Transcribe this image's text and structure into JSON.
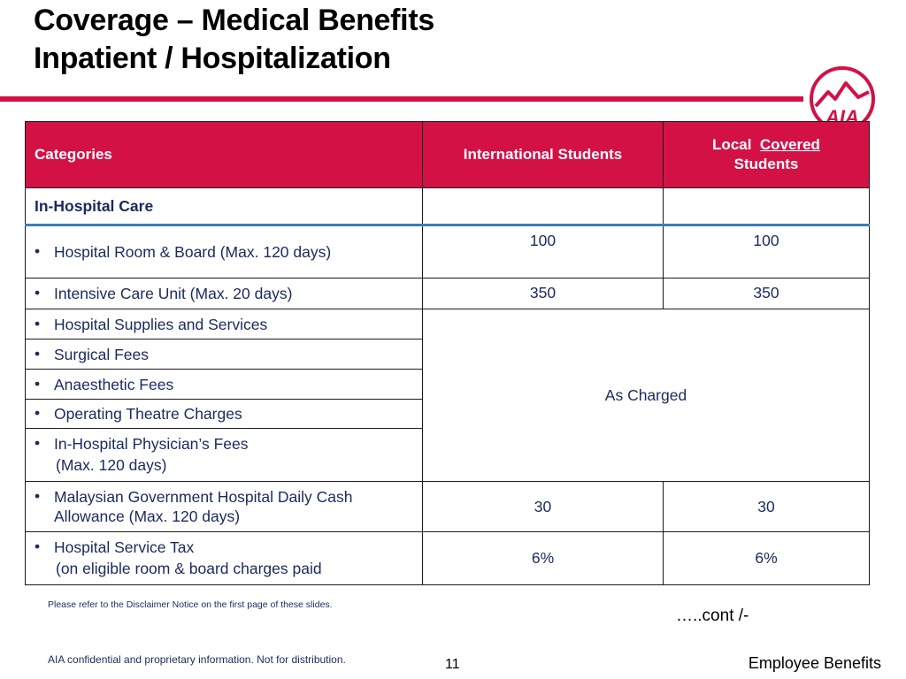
{
  "title": {
    "line1": "Coverage – Medical Benefits",
    "line2": "Inpatient / Hospitalization"
  },
  "brand": {
    "accent": "#d31145",
    "logo_icon": "aia-logo-icon",
    "logo_text": "AIA"
  },
  "table": {
    "headers": {
      "categories": "Categories",
      "international": "International Students",
      "local_prefix": "Local",
      "local_underlined": "Covered",
      "local_suffix": "Students"
    },
    "section": "In-Hospital Care",
    "bullet": "•",
    "rows": [
      {
        "label": "Hospital Room & Board (Max. 120 days)",
        "international": "100",
        "local": "100"
      },
      {
        "label": "Intensive Care Unit  (Max. 20 days)",
        "international": "350",
        "local": "350"
      },
      {
        "label": "Hospital Supplies and Services"
      },
      {
        "label": "Surgical Fees"
      },
      {
        "label": "Anaesthetic Fees"
      },
      {
        "label": "Operating Theatre Charges"
      },
      {
        "label": "In-Hospital Physician’s Fees",
        "sub": "(Max. 120 days)"
      },
      {
        "label": "Malaysian Government Hospital Daily Cash Allowance (Max. 120 days)",
        "international": "30",
        "local": "30"
      },
      {
        "label": "Hospital Service Tax",
        "sub": "(on eligible room & board charges paid",
        "international": "6%",
        "local": "6%"
      }
    ],
    "merged_value": "As Charged"
  },
  "note": "Please refer to the Disclaimer Notice on the first page of these slides.",
  "cont": "…..cont /-",
  "footer": {
    "confidential": "AIA confidential and proprietary information. Not for distribution.",
    "page": "11",
    "section": "Employee Benefits"
  }
}
